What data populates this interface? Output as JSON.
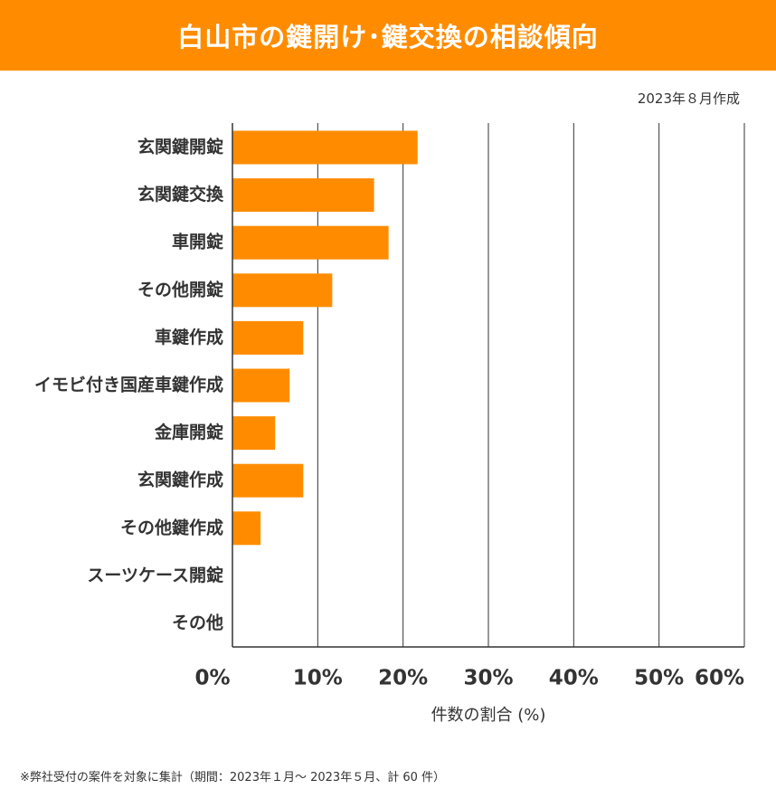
{
  "header": {
    "title": "白山市の鍵開け･鍵交換の相談傾向",
    "date_note": "2023年８月作成"
  },
  "colors": {
    "accent": "#ff8c00",
    "bar": "#ff8c00",
    "grid": "#333333",
    "text": "#333333"
  },
  "chart_data": {
    "type": "bar",
    "orientation": "horizontal",
    "categories": [
      "玄関鍵開錠",
      "玄関鍵交換",
      "車開錠",
      "その他開錠",
      "車鍵作成",
      "イモビ付き国産車鍵作成",
      "金庫開錠",
      "玄関鍵作成",
      "その他鍵作成",
      "スーツケース開錠",
      "その他"
    ],
    "values": [
      21.7,
      16.6,
      18.3,
      11.7,
      8.3,
      6.7,
      5.0,
      8.3,
      3.3,
      0,
      0
    ],
    "xlim": [
      0,
      60
    ],
    "xticks": [
      0,
      10,
      20,
      30,
      40,
      50,
      60
    ],
    "tick_labels": [
      "0%",
      "10%",
      "20%",
      "30%",
      "40%",
      "50%",
      "60%"
    ],
    "xlabel": "件数の割合 (%)",
    "grid": true,
    "legend": "none"
  },
  "footnote": "※弊社受付の案件を対象に集計（期間：2023年１月～ 2023年５月、計 60 件）"
}
